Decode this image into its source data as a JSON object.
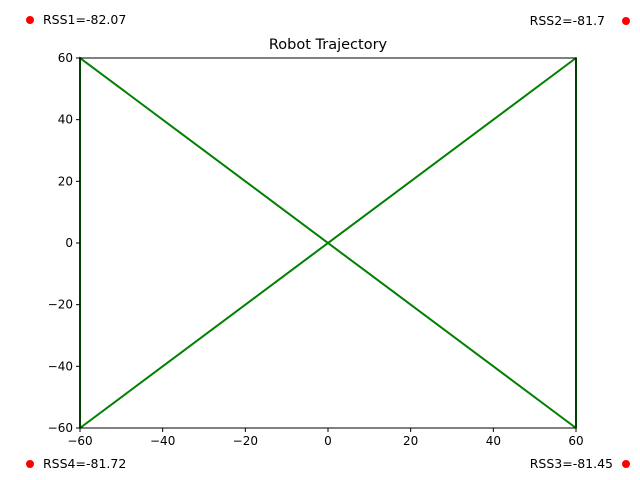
{
  "chart_data": {
    "type": "line",
    "title": "Robot Trajectory",
    "xlabel": "",
    "ylabel": "",
    "xlim": [
      -60,
      60
    ],
    "ylim": [
      -60,
      60
    ],
    "x_ticks": [
      -60,
      -40,
      -20,
      0,
      20,
      40,
      60
    ],
    "y_ticks": [
      -60,
      -40,
      -20,
      0,
      20,
      40,
      60
    ],
    "x_tick_labels": [
      "−60",
      "−40",
      "−20",
      "0",
      "20",
      "40",
      "60"
    ],
    "y_tick_labels": [
      "−60",
      "−40",
      "−20",
      "0",
      "20",
      "40",
      "60"
    ],
    "grid": false,
    "series": [
      {
        "color": "#008000",
        "x": [
          -60,
          60,
          60,
          -60,
          -60
        ],
        "y": [
          60,
          -60,
          60,
          -60,
          60
        ]
      }
    ]
  },
  "rss_markers": {
    "color": "#ff0000",
    "items": [
      {
        "corner": "top-left",
        "label": "RSS1=-82.07"
      },
      {
        "corner": "top-right",
        "label": "RSS2=-81.7"
      },
      {
        "corner": "bottom-right",
        "label": "RSS3=-81.45"
      },
      {
        "corner": "bottom-left",
        "label": "RSS4=-81.72"
      }
    ]
  }
}
